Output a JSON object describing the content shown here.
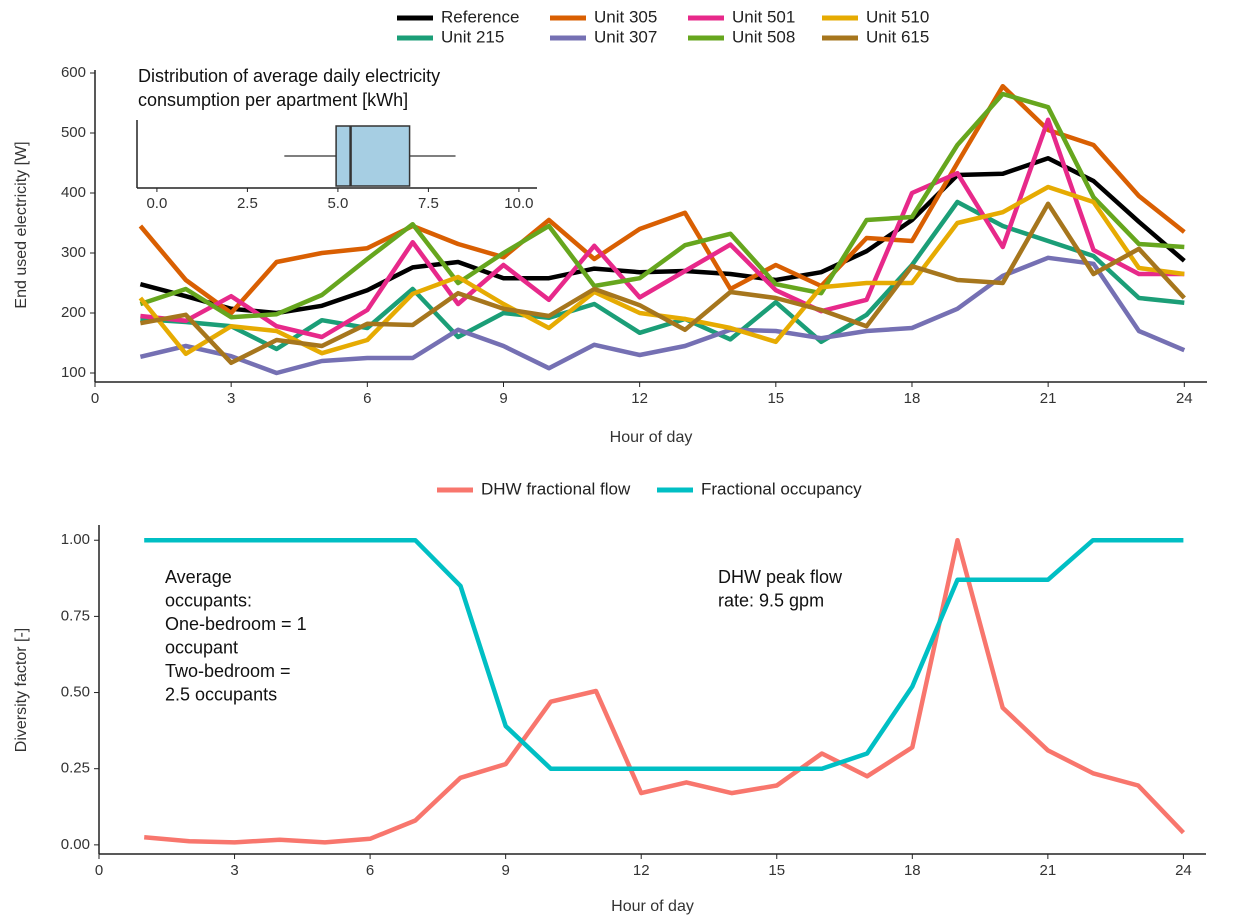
{
  "chart_data": [
    {
      "type": "line",
      "xlabel": "Hour of day",
      "ylabel": "End used electricity [W]",
      "x": [
        1,
        2,
        3,
        4,
        5,
        6,
        7,
        8,
        9,
        10,
        11,
        12,
        13,
        14,
        15,
        16,
        17,
        18,
        19,
        20,
        21,
        22,
        23,
        24
      ],
      "xlim": [
        0,
        24.5
      ],
      "xticks": [
        0,
        3,
        6,
        9,
        12,
        15,
        18,
        21,
        24
      ],
      "ylim": [
        85,
        605
      ],
      "yticks": [
        100,
        200,
        300,
        400,
        500,
        600
      ],
      "legend": "top",
      "series": [
        {
          "name": "Reference",
          "color": "#000000",
          "values": [
            248,
            228,
            207,
            200,
            212,
            238,
            276,
            285,
            258,
            258,
            274,
            268,
            270,
            265,
            255,
            268,
            303,
            355,
            430,
            432,
            458,
            420,
            352,
            287
          ]
        },
        {
          "name": "Unit 215",
          "color": "#1b9e77",
          "values": [
            190,
            185,
            178,
            140,
            188,
            175,
            240,
            160,
            200,
            192,
            215,
            167,
            190,
            156,
            218,
            152,
            197,
            280,
            385,
            345,
            320,
            295,
            225,
            217
          ]
        },
        {
          "name": "Unit 305",
          "color": "#d95f02",
          "values": [
            345,
            255,
            200,
            285,
            300,
            308,
            345,
            315,
            293,
            355,
            290,
            340,
            367,
            240,
            280,
            245,
            325,
            320,
            450,
            578,
            505,
            480,
            395,
            335
          ]
        },
        {
          "name": "Unit 307",
          "color": "#7570b3",
          "values": [
            127,
            145,
            128,
            100,
            120,
            125,
            125,
            172,
            145,
            108,
            147,
            130,
            145,
            172,
            170,
            158,
            170,
            175,
            207,
            262,
            292,
            282,
            170,
            138
          ]
        },
        {
          "name": "Unit 501",
          "color": "#e7298a",
          "values": [
            195,
            187,
            228,
            178,
            160,
            205,
            318,
            215,
            280,
            222,
            312,
            226,
            270,
            314,
            238,
            203,
            222,
            400,
            433,
            310,
            522,
            305,
            265,
            265
          ]
        },
        {
          "name": "Unit 508",
          "color": "#66a61e",
          "values": [
            215,
            240,
            193,
            198,
            230,
            290,
            348,
            250,
            300,
            345,
            245,
            258,
            313,
            332,
            248,
            233,
            355,
            360,
            480,
            565,
            543,
            393,
            315,
            310
          ]
        },
        {
          "name": "Unit 510",
          "color": "#e6ab02",
          "values": [
            225,
            132,
            178,
            170,
            133,
            155,
            232,
            260,
            215,
            175,
            235,
            200,
            190,
            175,
            152,
            243,
            250,
            250,
            350,
            368,
            410,
            385,
            275,
            265
          ]
        },
        {
          "name": "Unit 615",
          "color": "#a6761d",
          "values": [
            183,
            197,
            117,
            155,
            145,
            182,
            180,
            233,
            207,
            195,
            240,
            213,
            172,
            235,
            225,
            205,
            178,
            278,
            255,
            250,
            382,
            265,
            307,
            225
          ]
        }
      ]
    },
    {
      "type": "box",
      "title": [
        "Distribution of average daily electricity",
        "consumption per apartment [kWh]"
      ],
      "min": 3.52,
      "q1": 4.95,
      "median": 5.35,
      "q3": 6.98,
      "max": 8.25,
      "color": "#a6cee3",
      "xlim": [
        -0.55,
        10.5
      ],
      "xticks": [
        {
          "value": 0,
          "label": "0.0"
        },
        {
          "value": 2.5,
          "label": "2.5"
        },
        {
          "value": 5,
          "label": "5.0"
        },
        {
          "value": 7.5,
          "label": "7.5"
        },
        {
          "value": 10,
          "label": "10.0"
        }
      ]
    },
    {
      "type": "line",
      "xlabel": "Hour of day",
      "ylabel": "Diversity factor [-]",
      "x": [
        1,
        2,
        3,
        4,
        5,
        6,
        7,
        8,
        9,
        10,
        11,
        12,
        13,
        14,
        15,
        16,
        17,
        18,
        19,
        20,
        21,
        22,
        23,
        24
      ],
      "xlim": [
        0,
        24.5
      ],
      "xticks": [
        0,
        3,
        6,
        9,
        12,
        15,
        18,
        21,
        24
      ],
      "ylim": [
        -0.03,
        1.05
      ],
      "yticks": [
        {
          "value": 0,
          "label": "0.00"
        },
        {
          "value": 0.25,
          "label": "0.25"
        },
        {
          "value": 0.5,
          "label": "0.50"
        },
        {
          "value": 0.75,
          "label": "0.75"
        },
        {
          "value": 1,
          "label": "1.00"
        }
      ],
      "legend": "top",
      "series": [
        {
          "name": "DHW fractional flow",
          "color": "#f8766d",
          "values": [
            0.025,
            0.012,
            0.008,
            0.017,
            0.008,
            0.02,
            0.08,
            0.22,
            0.265,
            0.47,
            0.505,
            0.17,
            0.205,
            0.17,
            0.195,
            0.3,
            0.225,
            0.32,
            1.0,
            0.45,
            0.31,
            0.235,
            0.195,
            0.04
          ]
        },
        {
          "name": "Fractional occupancy",
          "color": "#00bfc4",
          "values": [
            1,
            1,
            1,
            1,
            1,
            1,
            1,
            0.85,
            0.39,
            0.25,
            0.25,
            0.25,
            0.25,
            0.25,
            0.25,
            0.25,
            0.3,
            0.52,
            0.87,
            0.87,
            0.87,
            1,
            1,
            1
          ]
        }
      ],
      "annotations": [
        {
          "lines": [
            "Average",
            "occupants:",
            "One-bedroom = 1",
            "occupant",
            "Two-bedroom =",
            "2.5 occupants"
          ]
        },
        {
          "lines": [
            "DHW peak flow",
            "rate: 9.5 gpm"
          ]
        }
      ]
    }
  ]
}
